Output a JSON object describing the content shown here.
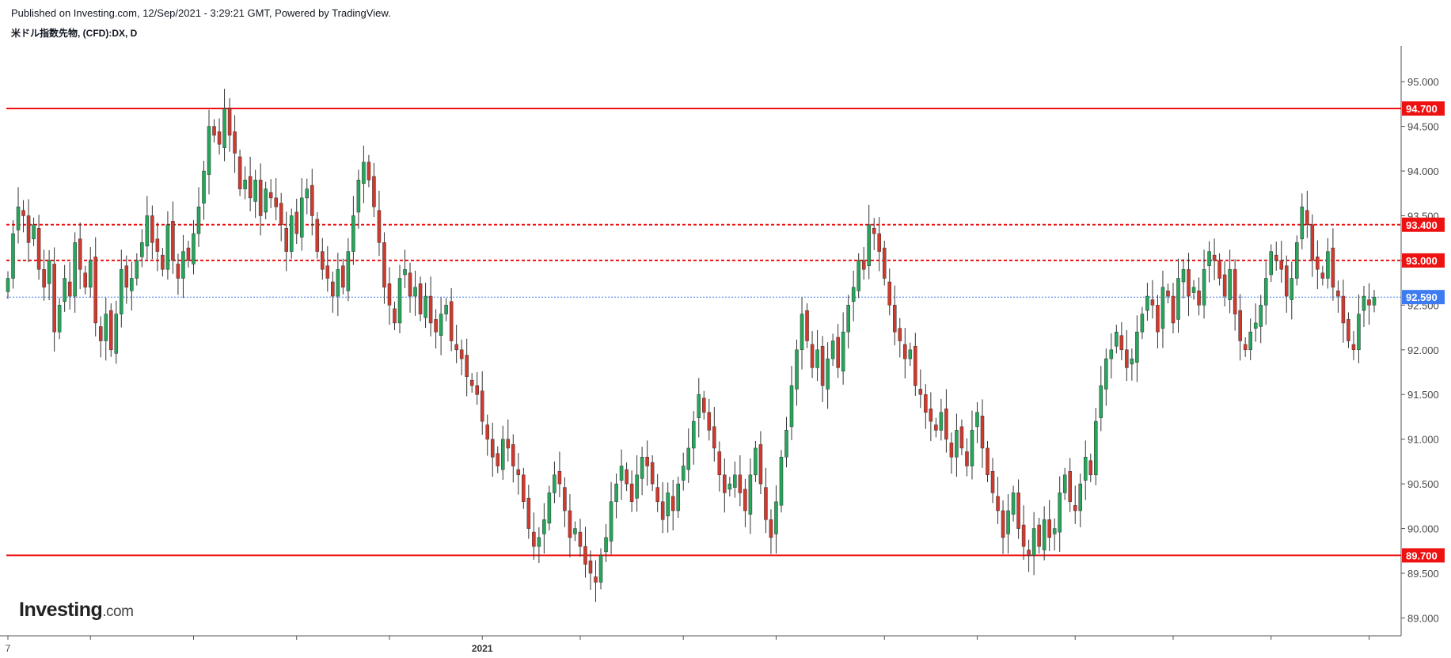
{
  "header": {
    "published": "Published on Investing.com, 12/Sep/2021 - 3:29:21 GMT, Powered by TradingView.",
    "instrument": "米ドル指数先物, (CFD):DX, D"
  },
  "logo": {
    "brand": "Investing",
    "suffix": ".com"
  },
  "colors": {
    "up": "#26a65b",
    "down": "#d03a2e",
    "support_line": "#ee1111",
    "current_price": "#3d7bf0"
  },
  "chart_data": {
    "type": "candlestick",
    "y_axis": {
      "min": 88.8,
      "max": 95.4,
      "ticks": [
        "89.000",
        "89.500",
        "90.000",
        "90.500",
        "91.000",
        "91.500",
        "92.000",
        "92.500",
        "93.000",
        "93.500",
        "94.000",
        "94.500",
        "95.000"
      ]
    },
    "x_axis": {
      "labels": [
        {
          "text": "7",
          "index": 0,
          "bold": false
        },
        {
          "text": "2021",
          "index": 92,
          "bold": true
        }
      ],
      "tick_indices": [
        0,
        16,
        36,
        56,
        74,
        92,
        111,
        131,
        149,
        170,
        188,
        207,
        226,
        245,
        264,
        283
      ]
    },
    "horizontal_lines": [
      {
        "value": 94.7,
        "label": "94.700",
        "style": "solid"
      },
      {
        "value": 93.4,
        "label": "93.400",
        "style": "dashed"
      },
      {
        "value": 93.0,
        "label": "93.000",
        "style": "dashed"
      },
      {
        "value": 92.59,
        "label": "92.590",
        "style": "dotted-current"
      },
      {
        "value": 89.7,
        "label": "89.700",
        "style": "solid"
      }
    ],
    "closes": [
      92.8,
      93.3,
      93.6,
      93.5,
      93.2,
      93.4,
      92.9,
      92.7,
      93.0,
      92.2,
      92.5,
      92.8,
      92.6,
      93.2,
      92.9,
      92.7,
      93.0,
      92.3,
      92.1,
      92.4,
      92.0,
      92.4,
      92.9,
      92.7,
      92.8,
      93.0,
      93.2,
      93.5,
      93.2,
      93.1,
      92.9,
      93.4,
      93.0,
      92.8,
      93.1,
      93.0,
      93.3,
      93.6,
      94.0,
      94.5,
      94.4,
      94.3,
      94.7,
      94.4,
      94.2,
      93.8,
      93.9,
      93.7,
      93.9,
      93.5,
      93.8,
      93.7,
      93.6,
      93.4,
      93.1,
      93.5,
      93.3,
      93.7,
      93.8,
      93.5,
      93.1,
      92.9,
      92.8,
      92.6,
      92.9,
      92.7,
      93.1,
      93.5,
      93.9,
      94.1,
      93.9,
      93.6,
      93.2,
      92.7,
      92.5,
      92.3,
      92.8,
      92.9,
      92.6,
      92.7,
      92.4,
      92.6,
      92.3,
      92.2,
      92.4,
      92.5,
      92.1,
      92.0,
      91.9,
      91.7,
      91.6,
      91.5,
      91.2,
      91.0,
      90.8,
      90.7,
      91.0,
      90.9,
      90.7,
      90.6,
      90.3,
      90.0,
      89.8,
      89.9,
      90.1,
      90.4,
      90.6,
      90.5,
      90.2,
      89.9,
      90.0,
      89.8,
      89.6,
      89.5,
      89.4,
      89.7,
      89.9,
      90.3,
      90.5,
      90.7,
      90.5,
      90.3,
      90.6,
      90.8,
      90.7,
      90.5,
      90.3,
      90.1,
      90.4,
      90.2,
      90.5,
      90.7,
      90.9,
      91.2,
      91.5,
      91.3,
      91.1,
      90.9,
      90.6,
      90.4,
      90.5,
      90.6,
      90.4,
      90.2,
      90.6,
      90.9,
      90.5,
      90.1,
      89.9,
      90.3,
      90.8,
      91.1,
      91.6,
      92.0,
      92.4,
      92.1,
      91.8,
      92.0,
      91.6,
      91.9,
      92.1,
      91.8,
      92.2,
      92.5,
      92.7,
      93.0,
      92.9,
      93.4,
      93.3,
      93.1,
      92.8,
      92.5,
      92.2,
      92.1,
      91.9,
      92.0,
      91.6,
      91.5,
      91.3,
      91.2,
      91.1,
      91.3,
      91.0,
      90.8,
      91.1,
      90.9,
      90.7,
      91.1,
      91.3,
      90.9,
      90.6,
      90.4,
      90.2,
      89.9,
      90.2,
      90.4,
      90.0,
      89.8,
      89.7,
      90.0,
      89.8,
      90.1,
      89.9,
      90.0,
      90.4,
      90.6,
      90.3,
      90.2,
      90.5,
      90.8,
      90.6,
      91.2,
      91.6,
      91.9,
      92.0,
      92.2,
      92.0,
      91.8,
      91.9,
      92.2,
      92.4,
      92.6,
      92.5,
      92.2,
      92.7,
      92.6,
      92.3,
      92.8,
      92.9,
      92.6,
      92.7,
      92.5,
      92.9,
      93.1,
      93.0,
      92.8,
      92.6,
      92.9,
      92.4,
      92.1,
      92.0,
      92.2,
      92.3,
      92.5,
      92.8,
      93.1,
      93.0,
      92.9,
      92.6,
      92.8,
      93.2,
      93.6,
      93.4,
      93.0,
      92.9,
      92.8,
      93.1,
      92.7,
      92.6,
      92.3,
      92.1,
      92.0,
      92.4,
      92.6,
      92.5,
      92.59
    ]
  }
}
